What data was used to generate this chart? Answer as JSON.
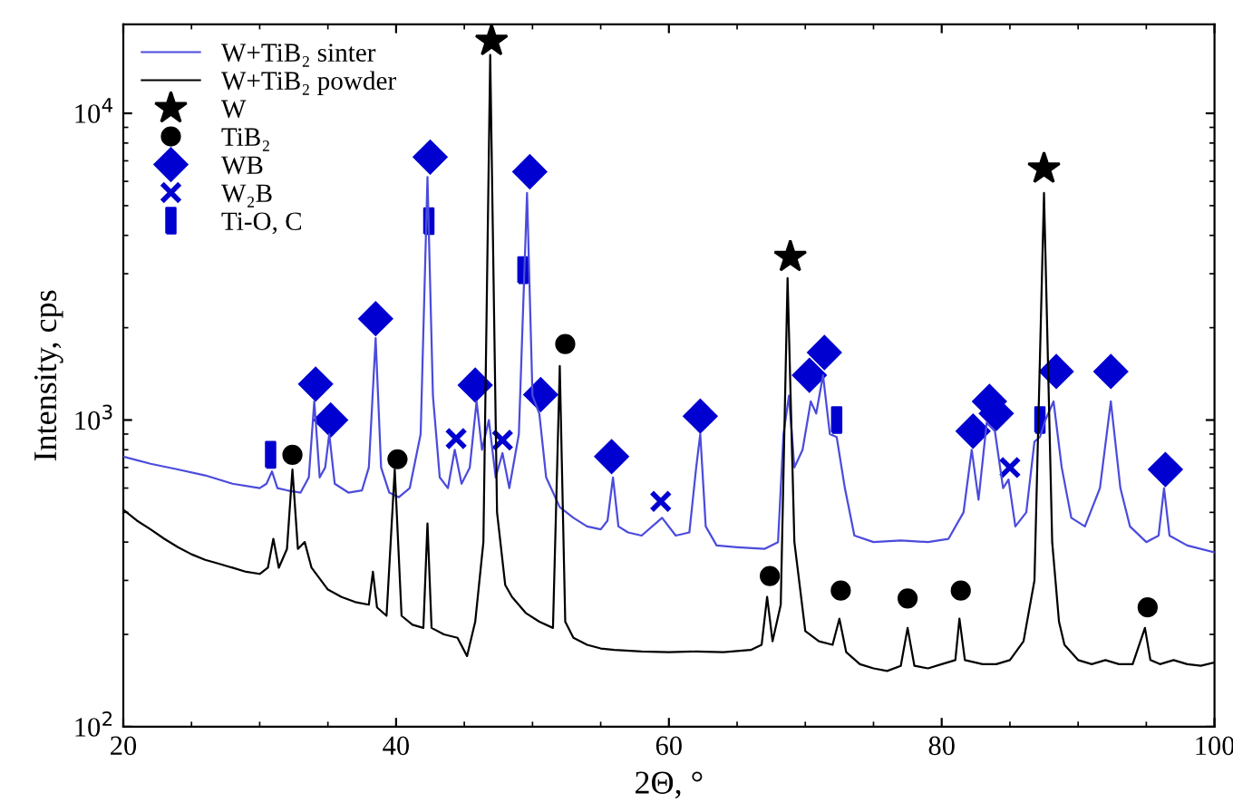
{
  "chart_data": {
    "type": "line",
    "xlabel": "2Θ, °",
    "ylabel": "Intensity, cps",
    "xlim": [
      20,
      100
    ],
    "xticks": [
      20,
      40,
      60,
      80,
      100
    ],
    "ylim": [
      100,
      19500
    ],
    "yticks": [
      {
        "value": 100,
        "label": "10$^{2}$"
      },
      {
        "value": 1000,
        "label": "10$^{3}$"
      },
      {
        "value": 10000,
        "label": "10$^{4}$"
      }
    ],
    "log": "y",
    "grid": false,
    "legend": "top left",
    "series": [
      {
        "name": "W+TiB₂ sinter",
        "color": "#4b4bdc",
        "marker": "none",
        "x": [
          20,
          22,
          24,
          26,
          28,
          30,
          30.5,
          30.9,
          31.3,
          32,
          33,
          33.6,
          34.0,
          34.4,
          34.8,
          35.1,
          35.5,
          36.5,
          37.5,
          38.0,
          38.5,
          38.9,
          39.5,
          40.2,
          41,
          41.8,
          42.3,
          42.7,
          43.2,
          43.8,
          44.3,
          44.8,
          45.4,
          45.9,
          46.3,
          46.8,
          47.3,
          47.8,
          48.3,
          49.0,
          49.6,
          50.0,
          50.5,
          51.0,
          52,
          53,
          54,
          55,
          55.5,
          55.9,
          56.3,
          57,
          58,
          59.5,
          60.5,
          61.5,
          62.0,
          62.3,
          62.7,
          63.5,
          65,
          67,
          68,
          68.4,
          68.8,
          69.2,
          69.8,
          70.4,
          70.8,
          71.3,
          71.8,
          72.3,
          72.9,
          73.6,
          75,
          77,
          79,
          80.5,
          81.6,
          82.2,
          82.7,
          83.3,
          83.9,
          84.5,
          84.9,
          85.4,
          86.2,
          86.8,
          87.2,
          87.6,
          88.2,
          88.8,
          89.5,
          90.5,
          91.6,
          92.4,
          93.1,
          93.8,
          95,
          95.9,
          96.3,
          96.7,
          98,
          100
        ],
        "values": [
          760,
          720,
          690,
          660,
          620,
          600,
          620,
          680,
          600,
          590,
          580,
          650,
          1150,
          650,
          700,
          900,
          620,
          580,
          590,
          700,
          1850,
          700,
          580,
          560,
          600,
          900,
          6200,
          1200,
          650,
          600,
          800,
          620,
          700,
          1150,
          800,
          1000,
          650,
          780,
          600,
          900,
          5500,
          1200,
          1050,
          650,
          520,
          480,
          450,
          440,
          470,
          650,
          450,
          430,
          420,
          480,
          420,
          430,
          700,
          900,
          450,
          390,
          385,
          380,
          400,
          900,
          1200,
          700,
          800,
          1150,
          1050,
          1400,
          900,
          880,
          600,
          420,
          400,
          405,
          400,
          410,
          500,
          800,
          550,
          980,
          920,
          600,
          640,
          450,
          500,
          850,
          880,
          1000,
          1150,
          700,
          480,
          450,
          600,
          1150,
          600,
          450,
          400,
          420,
          600,
          420,
          390,
          370
        ]
      },
      {
        "name": "W+TiB₂ powder",
        "color": "#000000",
        "marker": "none",
        "x": [
          20,
          21,
          22,
          23,
          24,
          25,
          26,
          27,
          28,
          29,
          30,
          30.6,
          31.0,
          31.4,
          32.0,
          32.4,
          32.8,
          33.3,
          33.8,
          35,
          36,
          37,
          38,
          38.3,
          38.6,
          39.3,
          39.9,
          40.4,
          41.2,
          42.0,
          42.3,
          42.6,
          43.5,
          44.5,
          45.2,
          45.8,
          46.4,
          46.9,
          47.4,
          48.0,
          48.5,
          49.5,
          50.5,
          51.5,
          52.0,
          52.4,
          53,
          54,
          55,
          56,
          58,
          60,
          62,
          64,
          66,
          66.8,
          67.2,
          67.6,
          68.2,
          68.7,
          69.2,
          70,
          71,
          72,
          72.5,
          73,
          74,
          75,
          76,
          77,
          77.5,
          78,
          79,
          80,
          81,
          81.3,
          81.7,
          83,
          84,
          85,
          86,
          86.8,
          87.5,
          88.1,
          88.6,
          89,
          90,
          91,
          92,
          93,
          94,
          94.9,
          95.3,
          96,
          97,
          98,
          99,
          100
        ],
        "values": [
          510,
          470,
          440,
          410,
          385,
          365,
          350,
          340,
          330,
          320,
          315,
          330,
          410,
          330,
          380,
          690,
          380,
          400,
          330,
          280,
          265,
          255,
          250,
          320,
          245,
          230,
          690,
          230,
          215,
          210,
          460,
          210,
          200,
          195,
          170,
          220,
          400,
          15500,
          500,
          290,
          265,
          235,
          220,
          210,
          1500,
          220,
          195,
          185,
          180,
          178,
          176,
          175,
          176,
          175,
          178,
          185,
          265,
          190,
          250,
          2900,
          400,
          205,
          190,
          185,
          225,
          175,
          160,
          155,
          152,
          158,
          210,
          158,
          155,
          160,
          165,
          225,
          165,
          160,
          160,
          165,
          190,
          300,
          5500,
          400,
          220,
          185,
          165,
          160,
          165,
          160,
          160,
          210,
          165,
          160,
          165,
          160,
          158,
          162
        ]
      },
      {
        "name": "W",
        "type": "scatter",
        "color": "#000000",
        "marker": "star",
        "x": [
          47.0,
          68.9,
          87.5
        ],
        "values": [
          17200,
          3400,
          6600
        ]
      },
      {
        "name": "TiB₂",
        "type": "scatter",
        "color": "#000000",
        "marker": "circle",
        "x": [
          32.4,
          40.1,
          52.4,
          67.4,
          72.6,
          77.5,
          81.4,
          95.1
        ],
        "values": [
          770,
          745,
          1770,
          310,
          278,
          262,
          278,
          245
        ]
      },
      {
        "name": "WB",
        "type": "scatter",
        "color": "#0000d0",
        "marker": "diamond",
        "x": [
          34.1,
          35.2,
          38.5,
          42.5,
          45.8,
          49.8,
          50.6,
          55.8,
          62.3,
          70.3,
          71.4,
          82.3,
          83.5,
          84.0,
          88.4,
          92.4,
          96.4
        ],
        "values": [
          1310,
          1000,
          2140,
          7200,
          1300,
          6450,
          1210,
          760,
          1030,
          1400,
          1660,
          920,
          1150,
          1050,
          1440,
          1440,
          690
        ]
      },
      {
        "name": "W₂B",
        "type": "scatter",
        "color": "#0000d0",
        "marker": "cross",
        "x": [
          44.4,
          47.8,
          59.4,
          85.0
        ],
        "values": [
          870,
          860,
          543,
          700
        ]
      },
      {
        "name": "Ti-O, C",
        "type": "scatter",
        "color": "#0000d0",
        "marker": "square",
        "x": [
          30.8,
          42.4,
          49.3,
          72.3,
          87.2
        ],
        "values": [
          770,
          4450,
          3080,
          1000,
          1000
        ]
      }
    ]
  }
}
